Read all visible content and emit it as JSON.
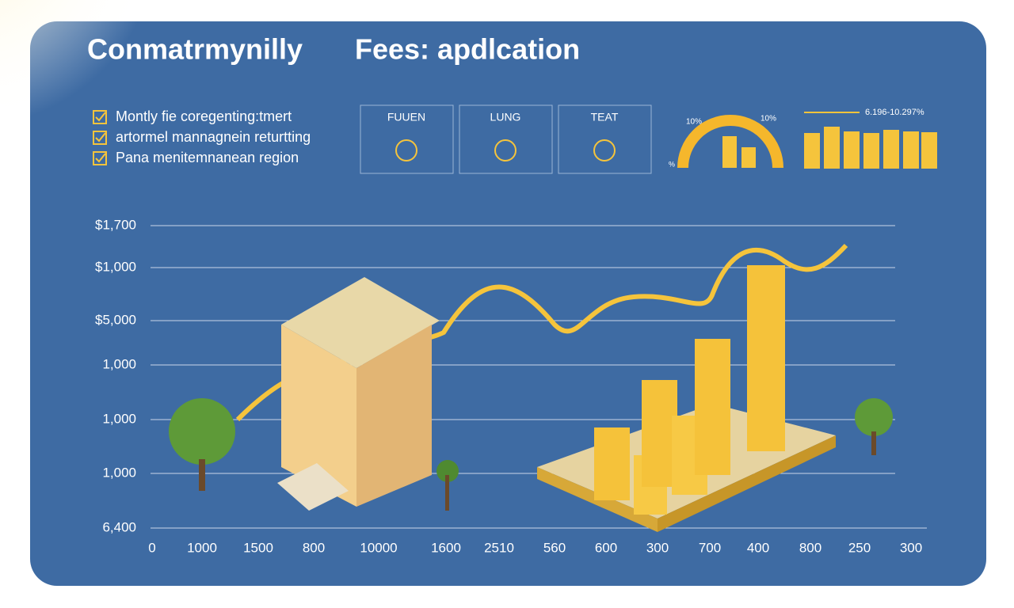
{
  "header": {
    "title_left": "Conmatrmynilly",
    "title_right": "Fees: apdlcation"
  },
  "checklist": [
    "Montly fie coregenting:tmert",
    "artormel mannagnein returtting",
    "Pana menitemnanean region"
  ],
  "cards": [
    {
      "label": "FUUEN"
    },
    {
      "label": "LUNG"
    },
    {
      "label": "TEAT"
    }
  ],
  "gauge": {
    "label_left": "10%",
    "label_right": "10%",
    "label_bottom": "%"
  },
  "mini_bars": {
    "label": "6.196-10.297%"
  },
  "axis": {
    "y_labels": [
      "$1,700",
      "$1,000",
      "$5,000",
      "1,000",
      "1,000",
      "1,000",
      "6,400"
    ],
    "x_labels": [
      "0",
      "1000",
      "1500",
      "800",
      "10000",
      "1600",
      "2510",
      "560",
      "600",
      "300",
      "700",
      "400",
      "800",
      "250",
      "300"
    ]
  }
}
